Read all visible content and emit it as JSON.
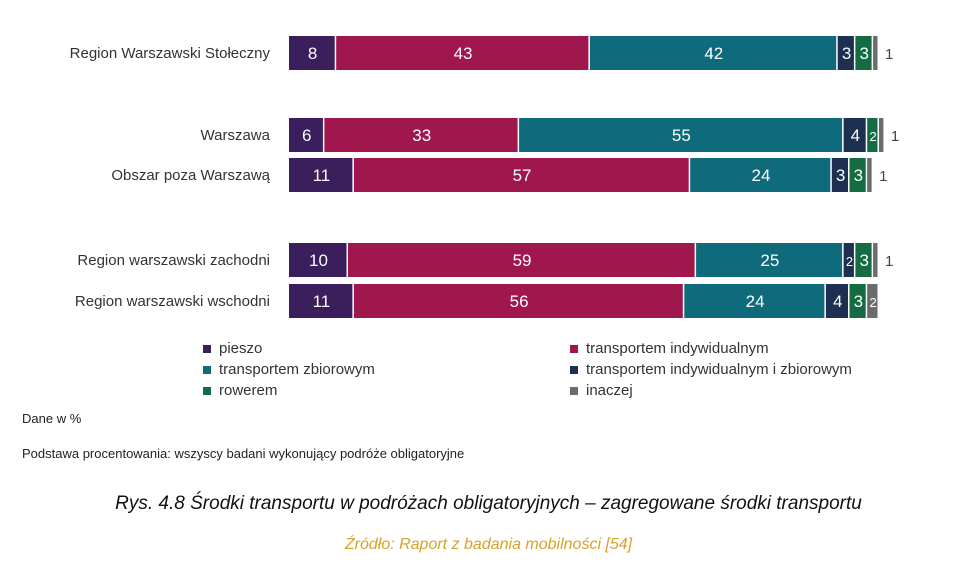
{
  "chart_data": {
    "type": "bar",
    "orientation": "horizontal",
    "stacked": true,
    "categories": [
      "Region Warszawski Stołeczny",
      "Warszawa",
      "Obszar poza Warszawą",
      "Region warszawski zachodni",
      "Region warszawski wschodni"
    ],
    "series": [
      {
        "name": "pieszo",
        "color": "#3b1f5c",
        "values": [
          8,
          6,
          11,
          10,
          11
        ]
      },
      {
        "name": "transportem indywidualnym",
        "color": "#a0174e",
        "values": [
          43,
          33,
          57,
          59,
          56
        ]
      },
      {
        "name": "transportem zbiorowym",
        "color": "#0f6b7c",
        "values": [
          42,
          55,
          24,
          25,
          24
        ]
      },
      {
        "name": "transportem indywidualnym i zbiorowym",
        "color": "#1d3052",
        "values": [
          3,
          4,
          3,
          2,
          4
        ]
      },
      {
        "name": "rowerem",
        "color": "#146c43",
        "values": [
          3,
          2,
          3,
          3,
          3
        ]
      },
      {
        "name": "inaczej",
        "color": "#6b6b6b",
        "values": [
          1,
          1,
          1,
          1,
          2
        ]
      }
    ],
    "xlim": [
      0,
      100
    ],
    "legend_position": "bottom",
    "grid": false,
    "unit_note": "Dane w %",
    "base_note": "Podstawa procentowania: wszyscy badani wykonujący podróże obligatoryjne"
  },
  "caption": {
    "title": "Rys. 4.8 Środki transportu w podróżach obligatoryjnych – zagregowane środki transportu",
    "source": "Źródło: Raport z badania mobilności [54]"
  }
}
